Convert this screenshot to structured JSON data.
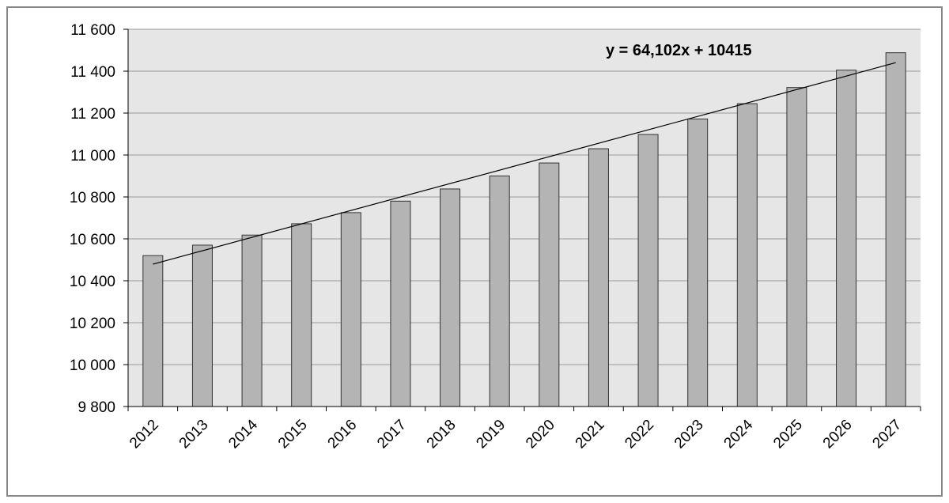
{
  "chart_data": {
    "type": "bar",
    "title": "",
    "xlabel": "",
    "ylabel": "",
    "categories": [
      "2012",
      "2013",
      "2014",
      "2015",
      "2016",
      "2017",
      "2018",
      "2019",
      "2020",
      "2021",
      "2022",
      "2023",
      "2024",
      "2025",
      "2026",
      "2027"
    ],
    "values": [
      10520,
      10570,
      10618,
      10672,
      10725,
      10780,
      10838,
      10900,
      10962,
      11030,
      11098,
      11172,
      11245,
      11322,
      11405,
      11488
    ],
    "ylim": [
      9800,
      11600
    ],
    "yticks": [
      9800,
      10000,
      10200,
      10400,
      10600,
      10800,
      11000,
      11200,
      11400,
      11600
    ],
    "ytick_labels": [
      "9 800",
      "10 000",
      "10 200",
      "10 400",
      "10 600",
      "10 800",
      "11 000",
      "11 200",
      "11 400",
      "11 600"
    ],
    "grid": true,
    "trendline": {
      "type": "linear",
      "slope": 64.102,
      "intercept": 10415,
      "label": "y = 64,102x + 10415"
    },
    "colors": {
      "plot_background": "#e6e6e6",
      "bar_fill": "#b4b4b4",
      "bar_stroke": "#333333",
      "grid": "#9a9a9a",
      "trendline": "#000000"
    }
  }
}
